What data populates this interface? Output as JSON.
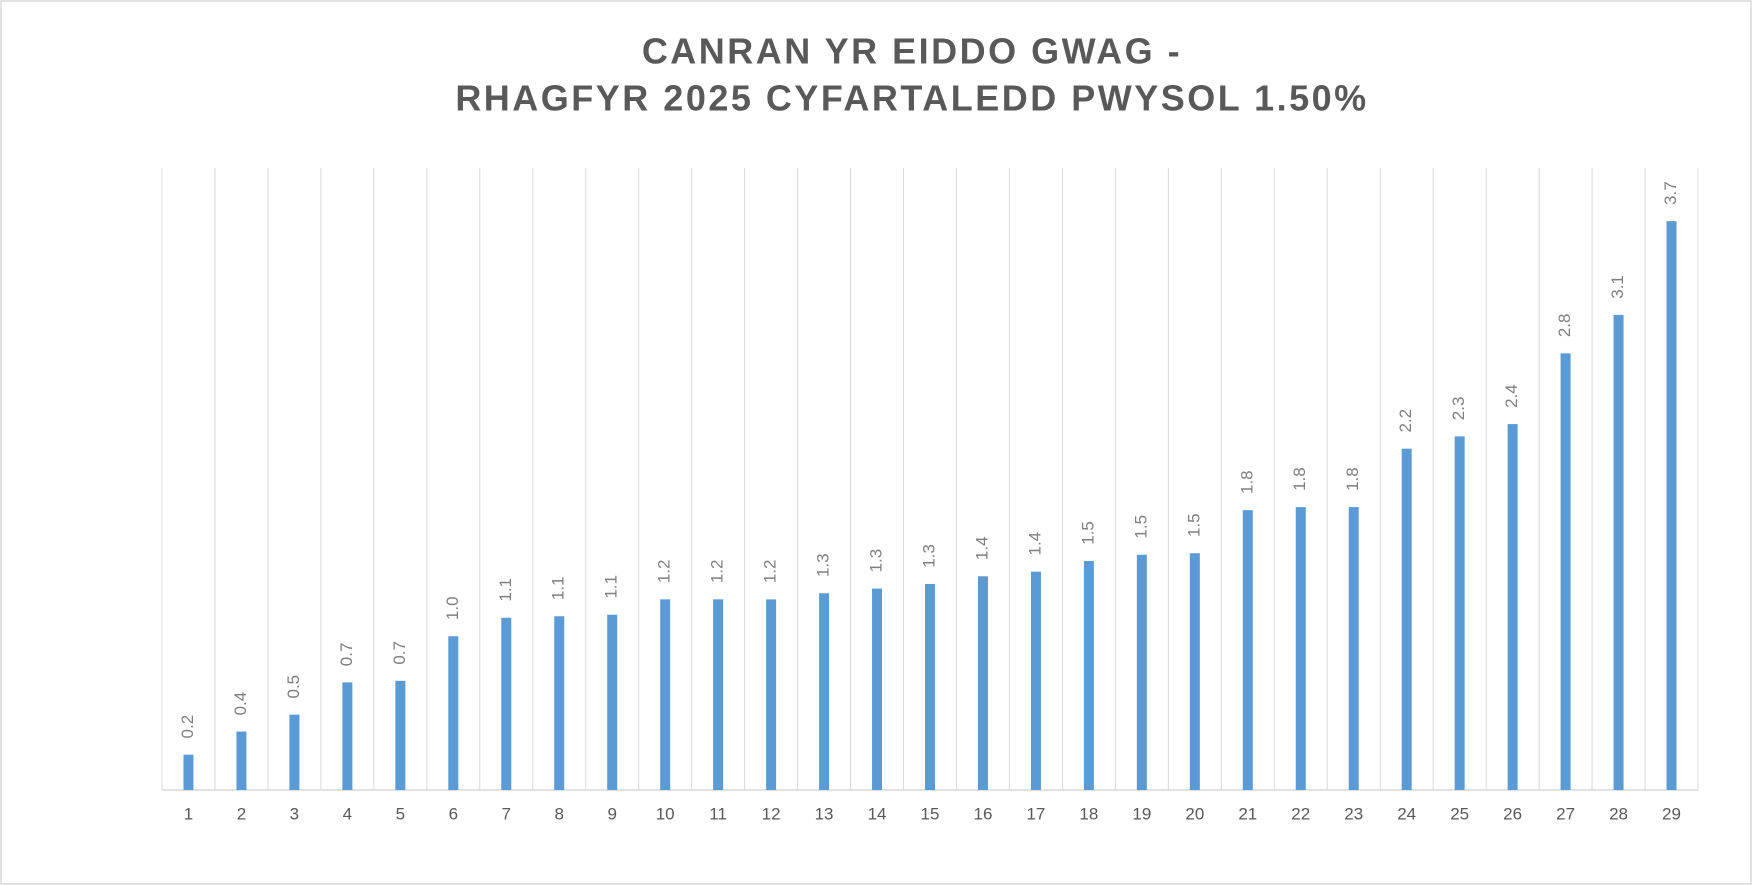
{
  "chart_data": {
    "type": "bar",
    "title": [
      "CANRAN YR EIDDO GWAG -",
      "RHAGFYR 2025 CYFARTALEDD PWYSOL 1.50%"
    ],
    "categories": [
      "1",
      "2",
      "3",
      "4",
      "5",
      "6",
      "7",
      "8",
      "9",
      "10",
      "11",
      "12",
      "13",
      "14",
      "15",
      "16",
      "17",
      "18",
      "19",
      "20",
      "21",
      "22",
      "23",
      "24",
      "25",
      "26",
      "27",
      "28",
      "29"
    ],
    "values": [
      0.23,
      0.38,
      0.49,
      0.7,
      0.71,
      1.0,
      1.12,
      1.13,
      1.14,
      1.24,
      1.24,
      1.24,
      1.28,
      1.31,
      1.34,
      1.39,
      1.42,
      1.49,
      1.53,
      1.54,
      1.82,
      1.84,
      1.84,
      2.22,
      2.3,
      2.38,
      2.84,
      3.09,
      3.7
    ],
    "value_labels": [
      "0.2",
      "0.4",
      "0.5",
      "0.7",
      "0.7",
      "1.0",
      "1.1",
      "1.1",
      "1.1",
      "1.2",
      "1.2",
      "1.2",
      "1.3",
      "1.3",
      "1.3",
      "1.4",
      "1.4",
      "1.5",
      "1.5",
      "1.5",
      "1.8",
      "1.8",
      "1.8",
      "2.2",
      "2.3",
      "2.4",
      "2.8",
      "3.1",
      "3.7"
    ],
    "color": "#5b9bd5",
    "ylim": [
      0,
      4
    ],
    "grid": true
  }
}
